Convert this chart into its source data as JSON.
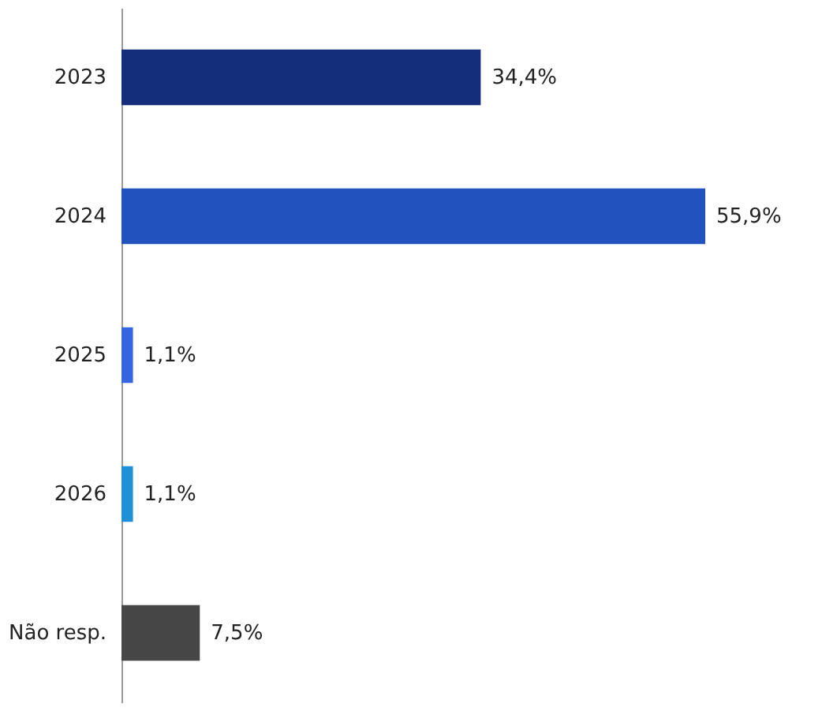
{
  "chart_data": {
    "type": "bar",
    "orientation": "horizontal",
    "categories": [
      "2023",
      "2024",
      "2025",
      "2026",
      "Não resp."
    ],
    "values": [
      34.4,
      55.9,
      1.1,
      1.1,
      7.5
    ],
    "colors": [
      "#152e7c",
      "#2152bd",
      "#3466e0",
      "#1f8fd6",
      "#464646"
    ],
    "value_labels": [
      "34,4%",
      "55,9%",
      "1,1%",
      "1,1%",
      "7,5%"
    ]
  }
}
